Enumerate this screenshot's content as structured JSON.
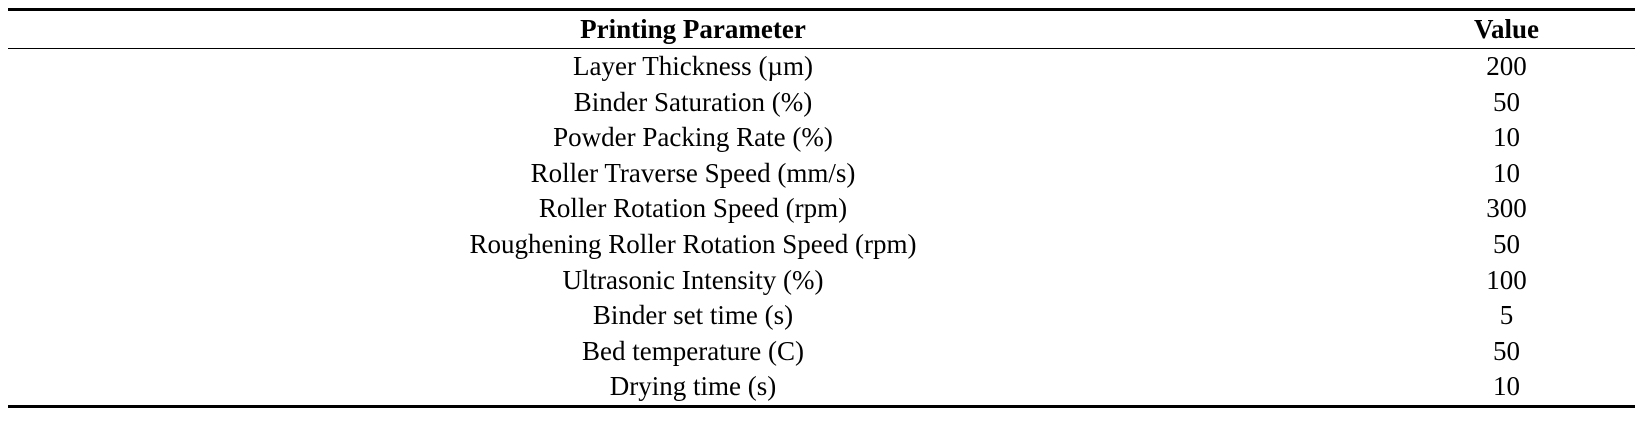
{
  "table": {
    "headers": {
      "parameter": "Printing Parameter",
      "value": "Value"
    },
    "rows": [
      {
        "parameter": "Layer Thickness (µm)",
        "value": "200"
      },
      {
        "parameter": "Binder Saturation (%)",
        "value": "50"
      },
      {
        "parameter": "Powder Packing Rate (%)",
        "value": "10"
      },
      {
        "parameter": "Roller Traverse Speed (mm/s)",
        "value": "10"
      },
      {
        "parameter": "Roller Rotation Speed (rpm)",
        "value": "300"
      },
      {
        "parameter": "Roughening Roller Rotation Speed (rpm)",
        "value": "50"
      },
      {
        "parameter": "Ultrasonic Intensity (%)",
        "value": "100"
      },
      {
        "parameter": "Binder set time (s)",
        "value": "5"
      },
      {
        "parameter": "Bed temperature (C)",
        "value": "50"
      },
      {
        "parameter": "Drying time (s)",
        "value": "10"
      }
    ]
  }
}
